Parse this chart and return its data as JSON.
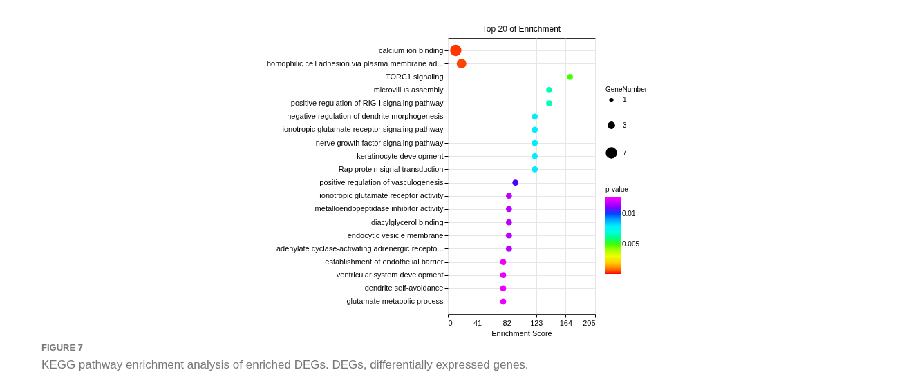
{
  "chart_data": {
    "type": "bubble",
    "title": "Top 20 of  Enrichment",
    "xlabel": "Enrichment Score",
    "legend_title": "GeneNumber",
    "clabel": "p-value",
    "categories": [
      "calcium ion binding",
      "homophilic cell adhesion via plasma membrane ad...",
      "TORC1 signaling",
      "microvillus assembly",
      "positive regulation of RIG-I signaling pathway",
      "negative regulation of dendrite morphogenesis",
      "ionotropic glutamate receptor signaling pathway",
      "nerve growth factor signaling pathway",
      "keratinocyte development",
      "Rap protein signal transduction",
      "positive regulation of vasculogenesis",
      "ionotropic glutamate receptor activity",
      "metalloendopeptidase inhibitor activity",
      "diacylglycerol binding",
      "endocytic vesicle membrane",
      "adenylate cyclase-activating adrenergic recepto...",
      "establishment of endothelial barrier",
      "ventricular system development",
      "dendrite self-avoidance",
      "glutamate metabolic process"
    ],
    "orientation": "horizontal",
    "values": [
      11,
      19,
      170,
      141,
      141,
      121,
      121,
      121,
      121,
      121,
      94,
      85,
      85,
      85,
      85,
      85,
      77,
      77,
      77,
      77
    ],
    "sizes": [
      7,
      5,
      2,
      2,
      2,
      2,
      2,
      2,
      2,
      2,
      2,
      2,
      2,
      2,
      2,
      2,
      2,
      2,
      2,
      2
    ],
    "size_legend": [
      1,
      3,
      7
    ],
    "cvalues": [
      0.0003,
      0.0004,
      0.005,
      0.0065,
      0.0065,
      0.008,
      0.008,
      0.008,
      0.008,
      0.008,
      0.0105,
      0.0117,
      0.0117,
      0.0117,
      0.0117,
      0.0117,
      0.0125,
      0.0125,
      0.0125,
      0.0125
    ],
    "clim": [
      0.0001,
      0.0128
    ],
    "cticks": [
      0.005,
      0.01
    ],
    "xlim": [
      0,
      205
    ],
    "xticks": [
      0,
      41,
      82,
      123,
      164,
      205
    ],
    "grid": true,
    "annotations": [
      "FIGURE 7",
      "KEGG pathway enrichment analysis of enriched DEGs. DEGs, differentially expressed genes."
    ]
  }
}
